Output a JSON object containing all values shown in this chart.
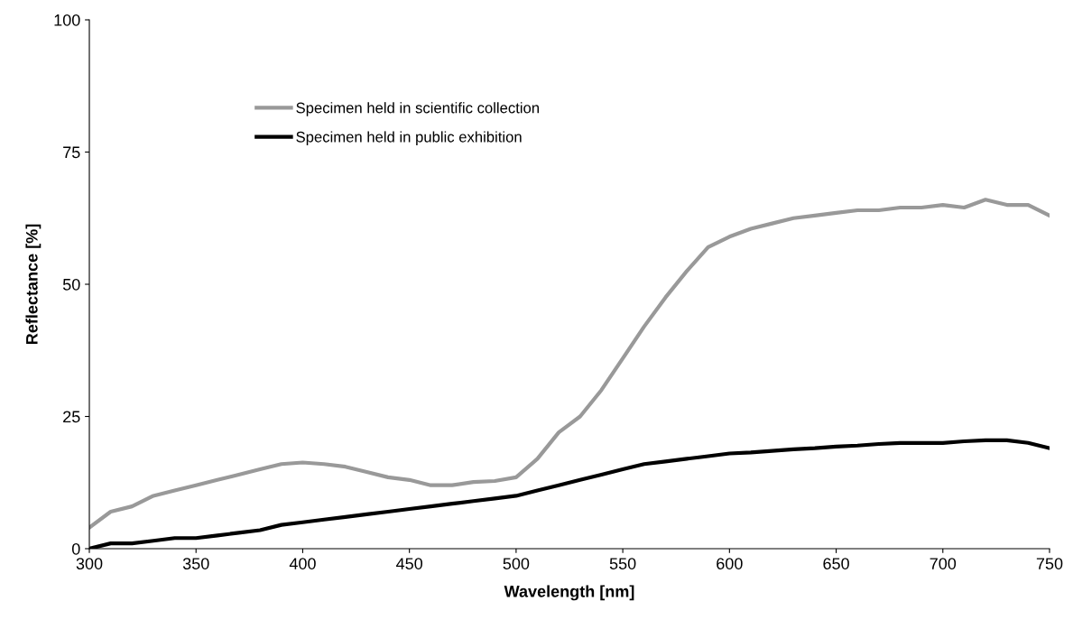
{
  "chart_data": {
    "type": "line",
    "xlabel": "Wavelength [nm]",
    "ylabel": "Reflectance [%]",
    "x": [
      300,
      310,
      320,
      330,
      340,
      350,
      360,
      370,
      380,
      390,
      400,
      410,
      420,
      430,
      440,
      450,
      460,
      470,
      480,
      490,
      500,
      510,
      520,
      530,
      540,
      550,
      560,
      570,
      580,
      590,
      600,
      610,
      620,
      630,
      640,
      650,
      660,
      670,
      680,
      690,
      700,
      710,
      720,
      730,
      740,
      750
    ],
    "series": [
      {
        "name": "Specimen held in scientific collection",
        "color": "#999999",
        "values": [
          4,
          7,
          8,
          10,
          11,
          12,
          13,
          14,
          15,
          16,
          16.3,
          16,
          15.5,
          14.5,
          13.5,
          13,
          12,
          12,
          12.6,
          12.8,
          13.5,
          17,
          22,
          25,
          30,
          36,
          42,
          47.5,
          52.5,
          57,
          59,
          60.5,
          61.5,
          62.5,
          63,
          63.5,
          64,
          64,
          64.5,
          64.5,
          65,
          64.5,
          66,
          65,
          65,
          63
        ]
      },
      {
        "name": "Specimen held in public exhibition",
        "color": "#000000",
        "values": [
          0,
          1,
          1,
          1.5,
          2,
          2,
          2.5,
          3,
          3.5,
          4.5,
          5,
          5.5,
          6,
          6.5,
          7,
          7.5,
          8,
          8.5,
          9,
          9.5,
          10,
          11,
          12,
          13,
          14,
          15,
          16,
          16.5,
          17,
          17.5,
          18,
          18.2,
          18.5,
          18.8,
          19,
          19.3,
          19.5,
          19.8,
          20,
          20,
          20,
          20.3,
          20.5,
          20.5,
          20,
          19
        ]
      }
    ],
    "xlim": [
      300,
      750
    ],
    "ylim": [
      0,
      100
    ],
    "xticks": [
      300,
      350,
      400,
      450,
      500,
      550,
      600,
      650,
      700,
      750
    ],
    "yticks": [
      0,
      25,
      50,
      75,
      100
    ],
    "grid": false,
    "legend": "top left",
    "marker": "none",
    "line_style": "solid"
  }
}
